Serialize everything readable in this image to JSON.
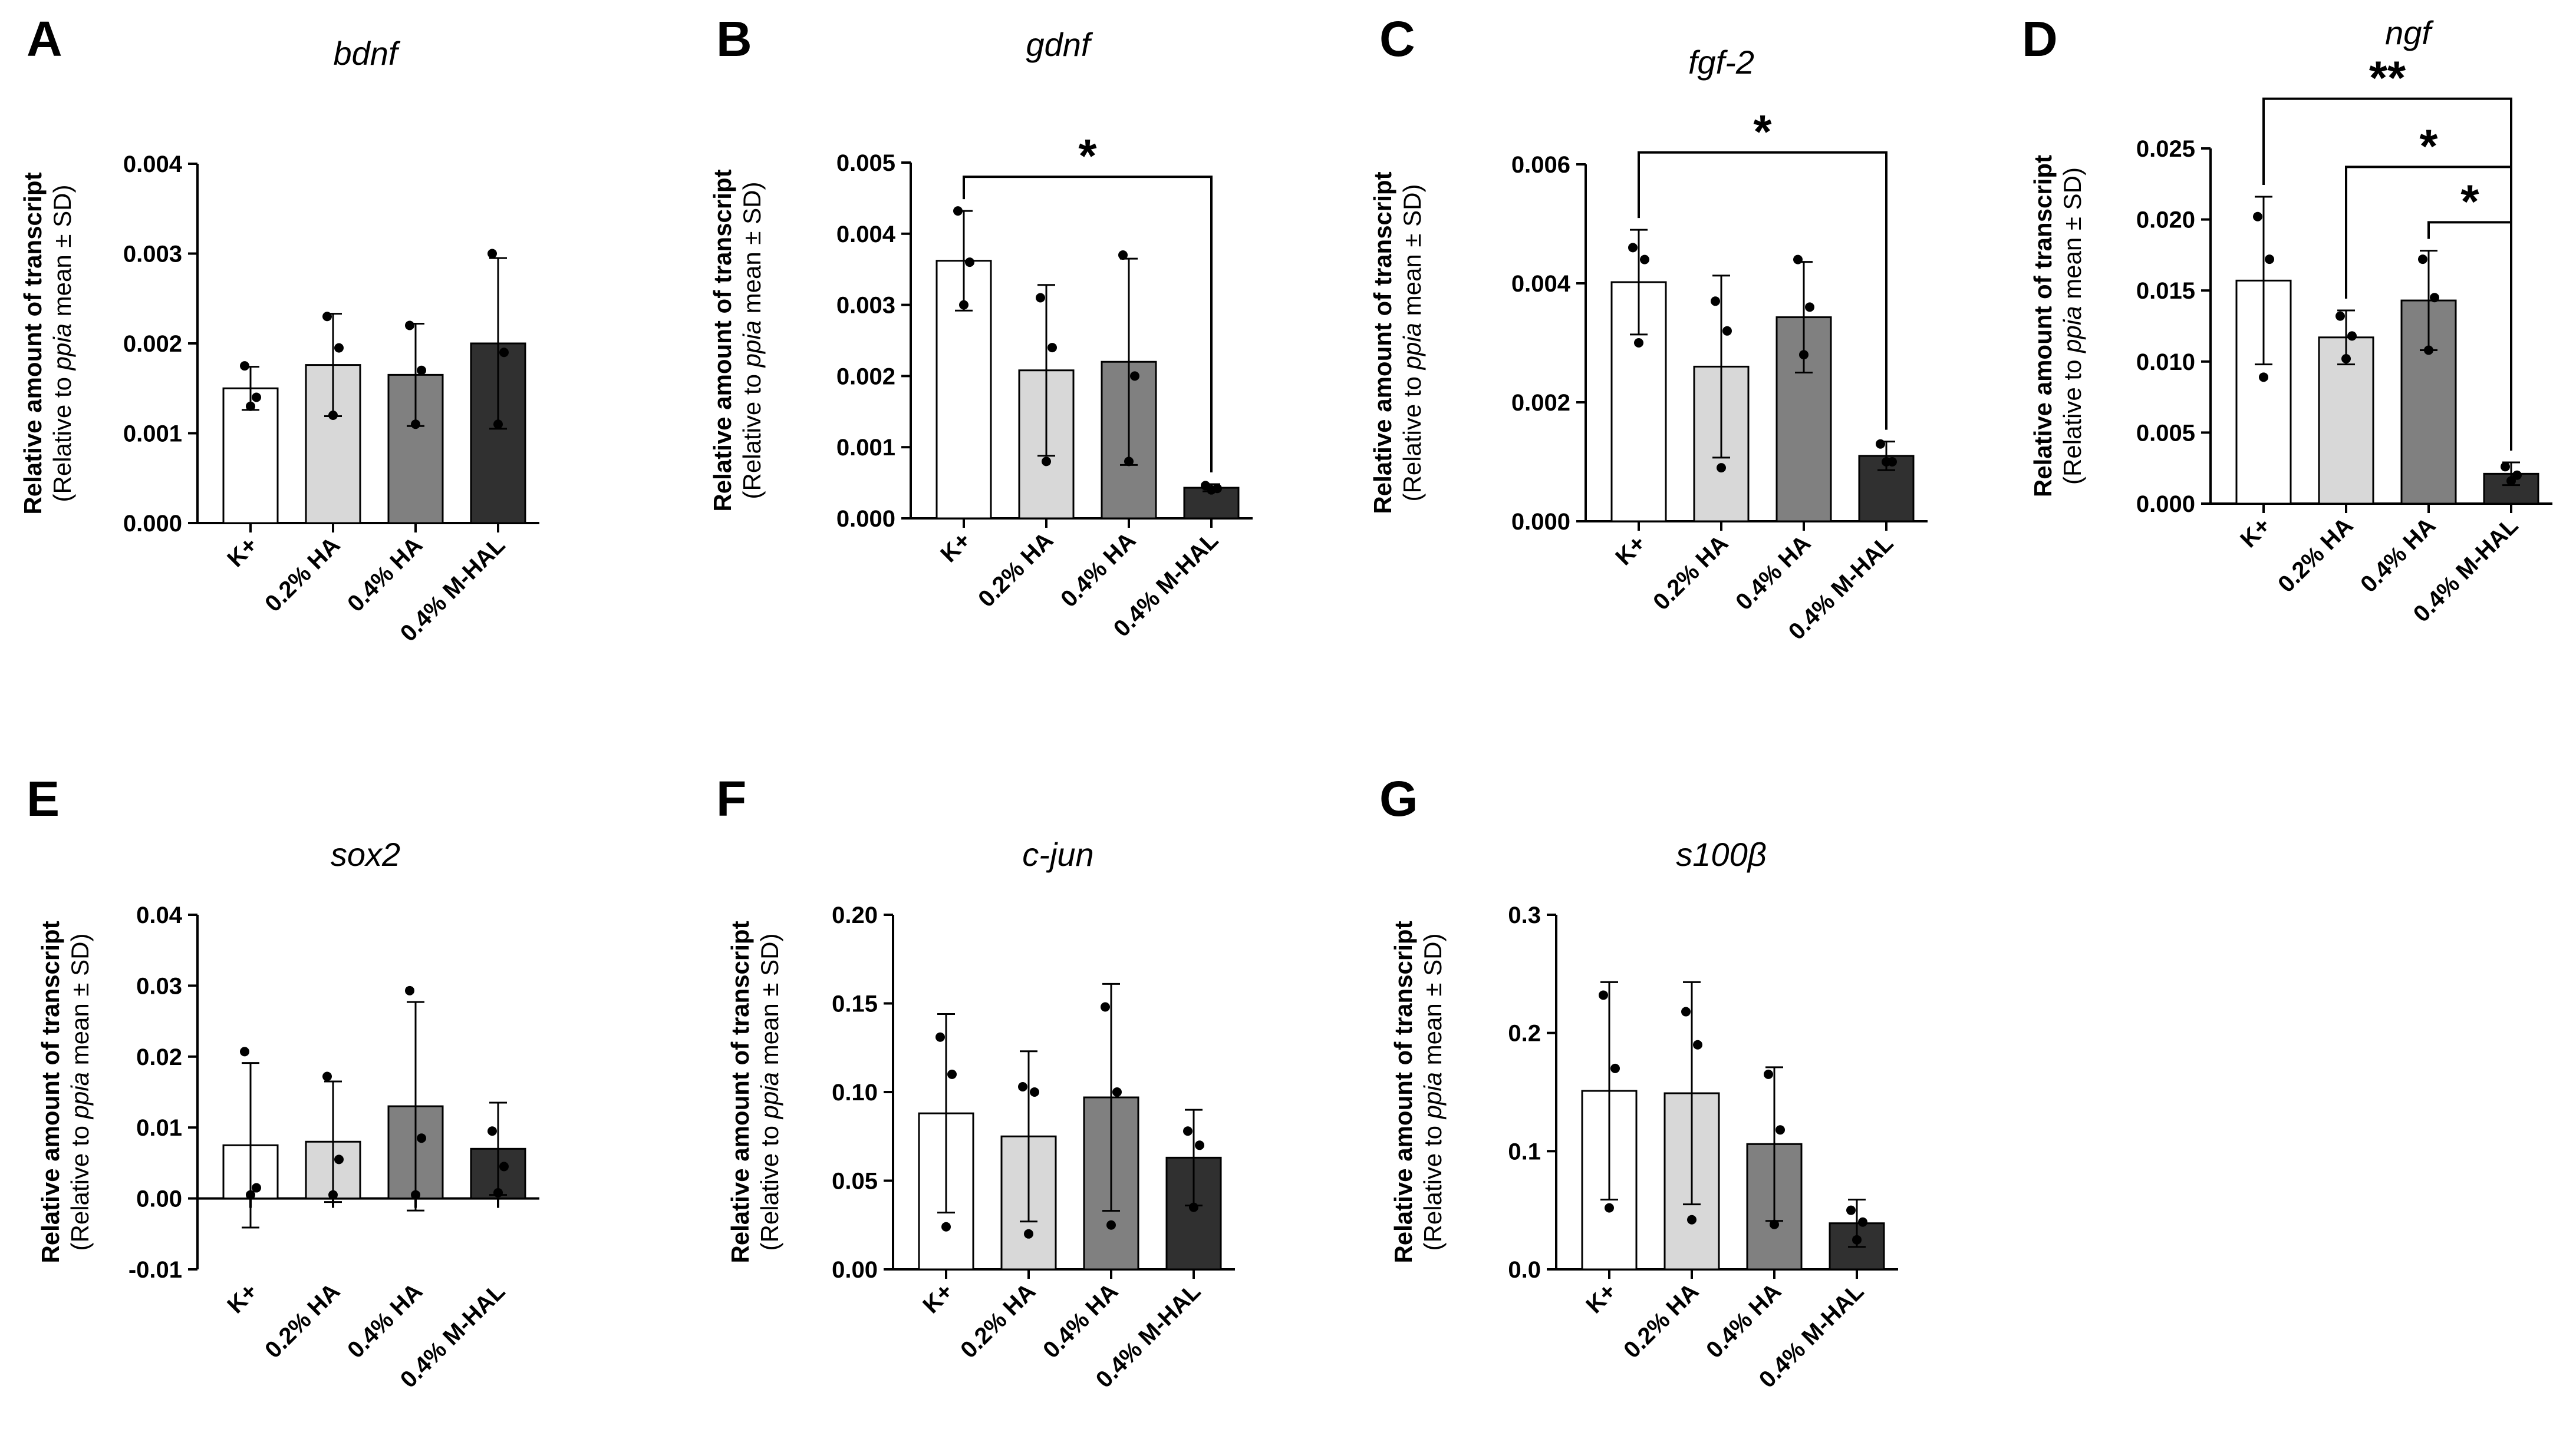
{
  "figure": {
    "colors": {
      "K+": "#ffffff",
      "0.2% HA": "#d8d8d8",
      "0.4% HA": "#808080",
      "0.4% M-HAL": "#303030"
    }
  },
  "chart_data": [
    {
      "panel": "A",
      "type": "bar",
      "title": "bdnf",
      "ylabel": "Relative amount of transcript",
      "ylabel_sub_prefix": "(Relative to ",
      "ylabel_sub_italic": "ppia",
      "ylabel_sub_suffix": " mean ± SD)",
      "categories": [
        "K+",
        "0.2% HA",
        "0.4% HA",
        "0.4% M-HAL"
      ],
      "values": [
        0.0015,
        0.00176,
        0.00165,
        0.002
      ],
      "sd": [
        0.00024,
        0.00057,
        0.00057,
        0.00095
      ],
      "points": [
        [
          0.00175,
          0.0014,
          0.0013
        ],
        [
          0.0023,
          0.00195,
          0.0012
        ],
        [
          0.0022,
          0.0017,
          0.0011
        ],
        [
          0.003,
          0.0019,
          0.0011
        ]
      ],
      "ylim": [
        0,
        0.004
      ],
      "yticks": [
        0,
        0.001,
        0.002,
        0.003,
        0.004
      ],
      "ytick_labels": [
        "0.000",
        "0.001",
        "0.002",
        "0.003",
        "0.004"
      ],
      "significance": []
    },
    {
      "panel": "B",
      "type": "bar",
      "title": "gdnf",
      "ylabel": "Relative amount of transcript",
      "ylabel_sub_prefix": "(Relative to ",
      "ylabel_sub_italic": "ppia",
      "ylabel_sub_suffix": " mean ± SD)",
      "categories": [
        "K+",
        "0.2% HA",
        "0.4% HA",
        "0.4% M-HAL"
      ],
      "values": [
        0.00362,
        0.00208,
        0.0022,
        0.00043
      ],
      "sd": [
        0.0007,
        0.0012,
        0.00145,
        5e-05
      ],
      "points": [
        [
          0.00432,
          0.0036,
          0.003
        ],
        [
          0.0031,
          0.0024,
          0.0008
        ],
        [
          0.0037,
          0.002,
          0.0008
        ],
        [
          0.00046,
          0.00042,
          0.0004
        ]
      ],
      "ylim": [
        0,
        0.005
      ],
      "yticks": [
        0,
        0.001,
        0.002,
        0.003,
        0.004,
        0.005
      ],
      "ytick_labels": [
        "0.000",
        "0.001",
        "0.002",
        "0.003",
        "0.004",
        "0.005"
      ],
      "significance": [
        {
          "from": 0,
          "to": 3,
          "label": "*",
          "level": 0.0048
        }
      ]
    },
    {
      "panel": "C",
      "type": "bar",
      "title": "fgf-2",
      "ylabel": "Relative amount of transcript",
      "ylabel_sub_prefix": "(Relative to ",
      "ylabel_sub_italic": "ppia",
      "ylabel_sub_suffix": " mean ± SD)",
      "categories": [
        "K+",
        "0.2% HA",
        "0.4% HA",
        "0.4% M-HAL"
      ],
      "values": [
        0.00402,
        0.0026,
        0.00343,
        0.0011
      ],
      "sd": [
        0.00088,
        0.00153,
        0.00093,
        0.00024
      ],
      "points": [
        [
          0.0046,
          0.0044,
          0.003
        ],
        [
          0.0037,
          0.0032,
          0.0009
        ],
        [
          0.0044,
          0.0036,
          0.0028
        ],
        [
          0.0013,
          0.001,
          0.001
        ]
      ],
      "ylim": [
        0,
        0.006
      ],
      "yticks": [
        0,
        0.002,
        0.004,
        0.006
      ],
      "ytick_labels": [
        "0.000",
        "0.002",
        "0.004",
        "0.006"
      ],
      "significance": [
        {
          "from": 0,
          "to": 3,
          "label": "*",
          "level": 0.0062
        }
      ]
    },
    {
      "panel": "D",
      "type": "bar",
      "title": "ngf",
      "ylabel": "Relative amount of transcript",
      "ylabel_sub_prefix": "(Relative to ",
      "ylabel_sub_italic": "ppia",
      "ylabel_sub_suffix": " mean ± SD)",
      "categories": [
        "K+",
        "0.2% HA",
        "0.4% HA",
        "0.4% M-HAL"
      ],
      "values": [
        0.0157,
        0.0117,
        0.0143,
        0.0021
      ],
      "sd": [
        0.0059,
        0.0019,
        0.0035,
        0.0008
      ],
      "points": [
        [
          0.0202,
          0.0172,
          0.0089
        ],
        [
          0.0132,
          0.0118,
          0.0102
        ],
        [
          0.0172,
          0.0145,
          0.0108
        ],
        [
          0.0026,
          0.002,
          0.0016
        ]
      ],
      "ylim": [
        0,
        0.025
      ],
      "yticks": [
        0,
        0.005,
        0.01,
        0.015,
        0.02,
        0.025
      ],
      "ytick_labels": [
        "0.000",
        "0.005",
        "0.010",
        "0.015",
        "0.020",
        "0.025"
      ],
      "significance": [
        {
          "from": 0,
          "to": 3,
          "label": "**",
          "level": 0.0285
        },
        {
          "from": 1,
          "to": 3,
          "label": "*",
          "level": 0.0237
        },
        {
          "from": 2,
          "to": 3,
          "label": "*",
          "level": 0.0198
        }
      ]
    },
    {
      "panel": "E",
      "type": "bar",
      "title": "sox2",
      "ylabel": "Relative amount of transcript",
      "ylabel_sub_prefix": "(Relative to ",
      "ylabel_sub_italic": "ppia",
      "ylabel_sub_suffix": " mean ± SD)",
      "categories": [
        "K+",
        "0.2% HA",
        "0.4% HA",
        "0.4% M-HAL"
      ],
      "values": [
        0.0075,
        0.008,
        0.013,
        0.007
      ],
      "sd": [
        0.0116,
        0.0085,
        0.0147,
        0.0065
      ],
      "points": [
        [
          0.0207,
          0.0015,
          0.0005
        ],
        [
          0.0172,
          0.0055,
          0.0005
        ],
        [
          0.0293,
          0.0085,
          0.0005
        ],
        [
          0.0095,
          0.0045,
          0.0008
        ]
      ],
      "ylim": [
        -0.01,
        0.04
      ],
      "yticks": [
        -0.01,
        0,
        0.01,
        0.02,
        0.03,
        0.04
      ],
      "ytick_labels": [
        "-0.01",
        "0.00",
        "0.01",
        "0.02",
        "0.03",
        "0.04"
      ],
      "significance": []
    },
    {
      "panel": "F",
      "type": "bar",
      "title": "c-jun",
      "ylabel": "Relative amount of transcript",
      "ylabel_sub_prefix": "(Relative to ",
      "ylabel_sub_italic": "ppia",
      "ylabel_sub_suffix": " mean ± SD)",
      "categories": [
        "K+",
        "0.2% HA",
        "0.4% HA",
        "0.4% M-HAL"
      ],
      "values": [
        0.088,
        0.075,
        0.097,
        0.063
      ],
      "sd": [
        0.056,
        0.048,
        0.064,
        0.027
      ],
      "points": [
        [
          0.131,
          0.11,
          0.024
        ],
        [
          0.103,
          0.1,
          0.02
        ],
        [
          0.148,
          0.1,
          0.025
        ],
        [
          0.078,
          0.07,
          0.035
        ]
      ],
      "ylim": [
        0,
        0.2
      ],
      "yticks": [
        0,
        0.05,
        0.1,
        0.15,
        0.2
      ],
      "ytick_labels": [
        "0.00",
        "0.05",
        "0.10",
        "0.15",
        "0.20"
      ],
      "significance": []
    },
    {
      "panel": "G",
      "type": "bar",
      "title": "s100β",
      "ylabel": "Relative amount of transcript",
      "ylabel_sub_prefix": "(Relative to ",
      "ylabel_sub_italic": "ppia",
      "ylabel_sub_suffix": " mean ± SD)",
      "categories": [
        "K+",
        "0.2% HA",
        "0.4% HA",
        "0.4% M-HAL"
      ],
      "values": [
        0.151,
        0.149,
        0.106,
        0.039
      ],
      "sd": [
        0.092,
        0.094,
        0.065,
        0.02
      ],
      "points": [
        [
          0.232,
          0.17,
          0.052
        ],
        [
          0.218,
          0.19,
          0.042
        ],
        [
          0.165,
          0.118,
          0.038
        ],
        [
          0.05,
          0.04,
          0.025
        ]
      ],
      "ylim": [
        0,
        0.3
      ],
      "yticks": [
        0,
        0.1,
        0.2,
        0.3
      ],
      "ytick_labels": [
        "0.0",
        "0.1",
        "0.2",
        "0.3"
      ],
      "significance": []
    }
  ]
}
